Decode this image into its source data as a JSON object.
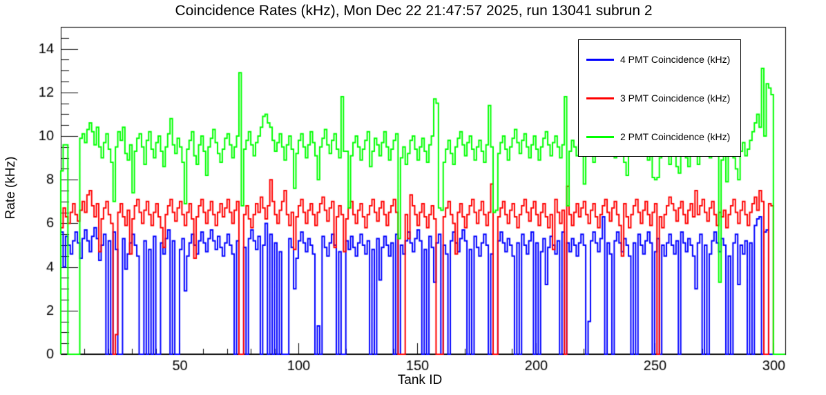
{
  "title": "Coincidence Rates (kHz), Mon Dec 22 21:47:57 2025, run 13041 subrun 2",
  "axes": {
    "x": {
      "label": "Tank ID",
      "min": 0,
      "max": 305,
      "major_ticks": [
        50,
        100,
        150,
        200,
        250,
        300
      ],
      "minor_step": 10
    },
    "y": {
      "label": "Rate (kHz)",
      "min": 0,
      "max": 15,
      "major_ticks": [
        0,
        2,
        4,
        6,
        8,
        10,
        12,
        14
      ],
      "minor_step": 0.5
    }
  },
  "legend": [
    {
      "label": "4 PMT Coincidence (kHz)",
      "color": "#0000ff"
    },
    {
      "label": "3 PMT Coincidence (kHz)",
      "color": "#ff0000"
    },
    {
      "label": "2 PMT Coincidence (kHz)",
      "color": "#00ff00"
    }
  ],
  "chart_data": {
    "type": "line",
    "style": "step-histogram",
    "title": "Coincidence Rates (kHz), Mon Dec 22 21:47:57 2025, run 13041 subrun 2",
    "xlabel": "Tank ID",
    "ylabel": "Rate (kHz)",
    "xlim": [
      0,
      305
    ],
    "ylim": [
      0,
      15
    ],
    "x_first_bin": 1,
    "bin_width": 1,
    "grid": false,
    "legend_position": "top-right",
    "series": [
      {
        "name": "4 PMT Coincidence (kHz)",
        "color": "#0000ff",
        "values": [
          5.6,
          4.0,
          5.4,
          5.0,
          4.6,
          5.2,
          5.6,
          5.1,
          4.4,
          5.3,
          5.7,
          5.2,
          4.7,
          5.4,
          5.8,
          5.3,
          4.3,
          5.0,
          5.5,
          0,
          5.2,
          0,
          5.6,
          4.8,
          0,
          0,
          5.3,
          3.9,
          4.6,
          5.1,
          5.5,
          5.0,
          4.5,
          0,
          0,
          5.2,
          0,
          4.8,
          0,
          5.4,
          0,
          0,
          5.1,
          4.6,
          5.3,
          5.7,
          0,
          5.2,
          0,
          0,
          4.8,
          5.3,
          2.9,
          4.5,
          5.1,
          5.5,
          5.0,
          4.6,
          5.2,
          5.6,
          5.1,
          4.7,
          5.3,
          5.7,
          5.2,
          4.8,
          5.4,
          4.9,
          4.5,
          5.1,
          5.5,
          5.0,
          4.6,
          0,
          5.2,
          0,
          0,
          4.9,
          0,
          5.3,
          5.7,
          5.2,
          4.8,
          5.4,
          0,
          5.0,
          6.0,
          0,
          5.5,
          0,
          5.1,
          0,
          4.7,
          0,
          0,
          0,
          5.3,
          4.9,
          3.0,
          4.4,
          5.2,
          5.6,
          5.1,
          4.7,
          5.3,
          5.0,
          4.6,
          0,
          1.3,
          0,
          5.4,
          4.9,
          4.5,
          5.1,
          5.5,
          5.0,
          0,
          4.7,
          0,
          0,
          5.2,
          4.8,
          5.4,
          4.9,
          4.5,
          5.1,
          5.5,
          5.0,
          4.6,
          5.2,
          0,
          4.8,
          0,
          5.3,
          3.4,
          4.9,
          5.4,
          5.0,
          4.5,
          5.1,
          0,
          5.5,
          0,
          5.0,
          4.6,
          5.2,
          5.6,
          5.1,
          4.7,
          5.3,
          5.7,
          5.2,
          0,
          4.8,
          0,
          5.4,
          4.9,
          3.3,
          5.1,
          5.5,
          0,
          5.0,
          4.6,
          0,
          5.2,
          5.6,
          5.1,
          4.7,
          5.3,
          5.7,
          5.2,
          0,
          4.8,
          0,
          5.4,
          4.9,
          4.5,
          5.1,
          5.5,
          5.0,
          0,
          4.6,
          0,
          0,
          5.2,
          5.6,
          5.1,
          4.7,
          5.3,
          5.0,
          4.5,
          0,
          5.1,
          0,
          5.5,
          5.0,
          4.6,
          5.2,
          5.6,
          0,
          5.1,
          0,
          4.7,
          5.3,
          3.2,
          4.9,
          5.4,
          5.0,
          4.6,
          5.2,
          0,
          5.6,
          0,
          5.1,
          4.7,
          5.3,
          5.0,
          4.5,
          5.1,
          5.5,
          5.0,
          0,
          1.5,
          5.2,
          5.6,
          5.1,
          4.7,
          5.3,
          6.3,
          0,
          5.1,
          4.6,
          0,
          5.2,
          5.6,
          5.1,
          4.7,
          5.3,
          5.0,
          4.5,
          0,
          5.1,
          0,
          5.5,
          5.0,
          4.6,
          5.2,
          5.6,
          5.1,
          0,
          4.7,
          5.3,
          0,
          5.0,
          4.5,
          5.1,
          5.5,
          5.0,
          4.6,
          5.2,
          0,
          5.6,
          5.1,
          4.7,
          5.3,
          5.0,
          4.5,
          3.0,
          5.1,
          5.5,
          0,
          5.0,
          0,
          4.6,
          5.2,
          5.6,
          5.1,
          4.7,
          5.3,
          5.0,
          0,
          4.5,
          0,
          5.1,
          5.5,
          3.2,
          5.0,
          4.6,
          5.2,
          0,
          5.1,
          0,
          5.9,
          6.2,
          6.3,
          0,
          5.6,
          5.7,
          0,
          0,
          0,
          0,
          0,
          0,
          0
        ]
      },
      {
        "name": "3 PMT Coincidence (kHz)",
        "color": "#ff0000",
        "values": [
          5.8,
          6.7,
          6.3,
          6.0,
          6.5,
          6.9,
          6.4,
          6.1,
          6.6,
          7.0,
          6.5,
          7.3,
          7.5,
          6.8,
          6.3,
          6.9,
          4.7,
          6.2,
          6.7,
          7.0,
          6.4,
          6.0,
          0,
          0.9,
          6.5,
          6.9,
          6.3,
          5.9,
          6.6,
          4.6,
          6.2,
          6.8,
          7.1,
          6.5,
          6.0,
          6.6,
          7.0,
          6.4,
          5.9,
          6.5,
          6.9,
          6.3,
          5.8,
          4.9,
          6.4,
          6.8,
          7.1,
          6.5,
          6.1,
          6.7,
          7.0,
          6.4,
          5.9,
          6.5,
          6.9,
          6.2,
          4.4,
          6.3,
          6.8,
          7.1,
          6.5,
          6.0,
          6.6,
          7.0,
          6.4,
          5.9,
          6.5,
          6.9,
          6.3,
          6.7,
          7.1,
          6.5,
          6.0,
          6.6,
          7.0,
          0,
          0,
          6.4,
          6.8,
          6.2,
          5.8,
          6.4,
          6.9,
          6.5,
          7.2,
          6.7,
          6.2,
          6.8,
          8.0,
          7.0,
          6.4,
          6.0,
          6.6,
          7.0,
          7.5,
          6.4,
          5.9,
          6.5,
          4.8,
          6.3,
          6.8,
          7.1,
          6.5,
          6.0,
          6.6,
          6.9,
          6.4,
          5.9,
          6.5,
          6.9,
          7.2,
          6.6,
          6.1,
          6.7,
          7.0,
          4.9,
          6.3,
          6.8,
          6.4,
          4.7,
          6.2,
          6.7,
          7.0,
          6.4,
          6.0,
          6.6,
          6.9,
          6.3,
          5.8,
          6.4,
          6.8,
          7.1,
          6.5,
          6.1,
          6.7,
          7.0,
          6.4,
          5.9,
          6.5,
          6.8,
          7.1,
          6.5,
          0,
          0,
          0,
          6.4,
          5.3,
          7.3,
          6.8,
          6.4,
          5.9,
          6.5,
          6.9,
          6.3,
          5.8,
          6.4,
          6.8,
          6.2,
          0,
          0,
          0,
          6.3,
          6.7,
          7.0,
          6.4,
          6.0,
          4.6,
          6.5,
          6.9,
          6.3,
          5.8,
          6.4,
          6.8,
          7.1,
          6.5,
          6.0,
          6.6,
          7.0,
          6.4,
          5.9,
          6.5,
          7.8,
          0,
          0,
          6.3,
          6.7,
          7.0,
          6.4,
          6.0,
          6.6,
          6.9,
          6.3,
          5.8,
          6.4,
          6.8,
          7.1,
          6.5,
          6.1,
          6.7,
          7.0,
          6.4,
          5.9,
          6.5,
          6.9,
          6.3,
          5.8,
          6.4,
          4.8,
          7.1,
          6.5,
          6.0,
          6.6,
          0,
          7.7,
          6.4,
          5.9,
          6.5,
          6.9,
          6.3,
          6.7,
          7.0,
          6.4,
          6.0,
          6.6,
          6.9,
          6.3,
          5.8,
          6.4,
          6.8,
          7.1,
          6.5,
          6.1,
          6.7,
          7.0,
          6.4,
          5.9,
          4.5,
          6.9,
          6.3,
          5.8,
          6.4,
          6.8,
          7.1,
          6.5,
          6.0,
          6.6,
          7.0,
          6.4,
          5.9,
          6.5,
          6.9,
          0,
          6.3,
          5.8,
          6.4,
          6.8,
          7.2,
          6.9,
          6.6,
          6.1,
          6.7,
          7.0,
          6.4,
          6.0,
          6.6,
          6.9,
          6.3,
          7.5,
          6.4,
          6.8,
          7.1,
          6.5,
          6.1,
          6.7,
          7.0,
          6.4,
          5.9,
          6.5,
          6.3,
          6.6,
          5.8,
          6.4,
          6.8,
          7.1,
          6.5,
          6.0,
          6.6,
          7.0,
          6.4,
          5.9,
          6.5,
          6.9,
          7.2,
          6.6,
          7.5,
          7.0,
          0,
          0,
          6.9,
          6.8,
          0,
          0,
          0,
          0,
          0
        ]
      },
      {
        "name": "2 PMT Coincidence (kHz)",
        "color": "#00ff00",
        "values": [
          8.4,
          9.6,
          9.6,
          0,
          0,
          0,
          0,
          0,
          9.9,
          10.1,
          9.7,
          10.3,
          10.6,
          10.2,
          9.6,
          10.4,
          9.5,
          9.0,
          9.7,
          10.1,
          9.4,
          8.8,
          7.0,
          9.5,
          10.2,
          9.8,
          10.4,
          9.2,
          8.9,
          9.6,
          7.4,
          9.3,
          9.9,
          10.1,
          9.5,
          8.7,
          9.8,
          10.2,
          9.4,
          9.0,
          9.7,
          10.0,
          9.3,
          8.6,
          9.5,
          10.1,
          10.8,
          9.6,
          9.2,
          9.9,
          9.5,
          8.8,
          6.9,
          9.4,
          9.8,
          10.2,
          9.1,
          8.7,
          9.6,
          10.0,
          9.3,
          8.2,
          9.5,
          9.9,
          10.3,
          9.7,
          9.2,
          8.8,
          9.4,
          9.9,
          10.1,
          9.6,
          9.0,
          9.5,
          10.0,
          12.9,
          6.8,
          9.4,
          9.8,
          10.2,
          9.6,
          9.1,
          9.7,
          10.0,
          10.4,
          10.9,
          11.0,
          10.6,
          10.4,
          9.8,
          9.3,
          9.7,
          10.1,
          9.5,
          8.9,
          9.6,
          10.0,
          9.4,
          7.6,
          9.2,
          9.8,
          10.1,
          9.5,
          9.0,
          9.6,
          10.2,
          9.7,
          9.1,
          8.0,
          9.5,
          9.9,
          10.3,
          9.6,
          9.2,
          9.8,
          10.1,
          9.4,
          9.0,
          11.8,
          9.3,
          9.3,
          6.7,
          9.1,
          9.7,
          10.0,
          9.5,
          8.9,
          9.4,
          9.8,
          10.2,
          8.6,
          9.3,
          9.9,
          9.6,
          9.1,
          9.7,
          10.2,
          9.5,
          8.9,
          9.4,
          9.8,
          10.1,
          5.3,
          9.0,
          9.5,
          8.7,
          9.2,
          9.8,
          10.0,
          9.4,
          8.9,
          9.5,
          9.9,
          9.3,
          8.8,
          9.6,
          10.0,
          11.7,
          11.5,
          6.7,
          6.6,
          8.8,
          9.4,
          9.8,
          9.2,
          8.7,
          9.5,
          9.9,
          10.2,
          9.6,
          9.1,
          9.7,
          10.0,
          9.4,
          8.9,
          9.5,
          9.8,
          9.3,
          8.8,
          9.6,
          11.4,
          9.5,
          6.5,
          6.6,
          9.2,
          9.7,
          10.0,
          9.4,
          8.9,
          9.5,
          9.9,
          10.3,
          9.7,
          9.2,
          9.8,
          10.1,
          9.5,
          9.0,
          9.6,
          10.0,
          9.4,
          8.9,
          9.5,
          9.9,
          10.2,
          9.6,
          9.1,
          9.7,
          10.0,
          9.5,
          9.0,
          9.6,
          11.8,
          6.8,
          9.3,
          9.8,
          9.5,
          9.1,
          9.6,
          9.9,
          7.8,
          9.4,
          9.8,
          9.2,
          8.8,
          9.5,
          9.9,
          10.9,
          9.6,
          9.1,
          9.7,
          10.1,
          9.4,
          9.0,
          9.6,
          9.9,
          9.3,
          8.8,
          8.2,
          9.5,
          9.9,
          10.2,
          9.6,
          9.1,
          9.7,
          10.0,
          9.4,
          8.9,
          9.5,
          8.1,
          8.0,
          8.1,
          9.0,
          9.5,
          9.8,
          9.2,
          8.7,
          9.4,
          9.8,
          8.6,
          8.3,
          9.2,
          9.6,
          9.0,
          8.6,
          9.3,
          9.7,
          9.1,
          8.7,
          9.4,
          9.8,
          10.4,
          9.5,
          9.0,
          9.6,
          9.9,
          9.3,
          3.3,
          8.9,
          9.5,
          7.9,
          9.2,
          9.6,
          9.0,
          8.5,
          8.0,
          9.3,
          9.7,
          9.1,
          9.4,
          9.8,
          10.2,
          10.6,
          11.0,
          10.4,
          13.1,
          10.0,
          12.4,
          12.2,
          11.9,
          0,
          0,
          0,
          0,
          0
        ]
      }
    ]
  }
}
